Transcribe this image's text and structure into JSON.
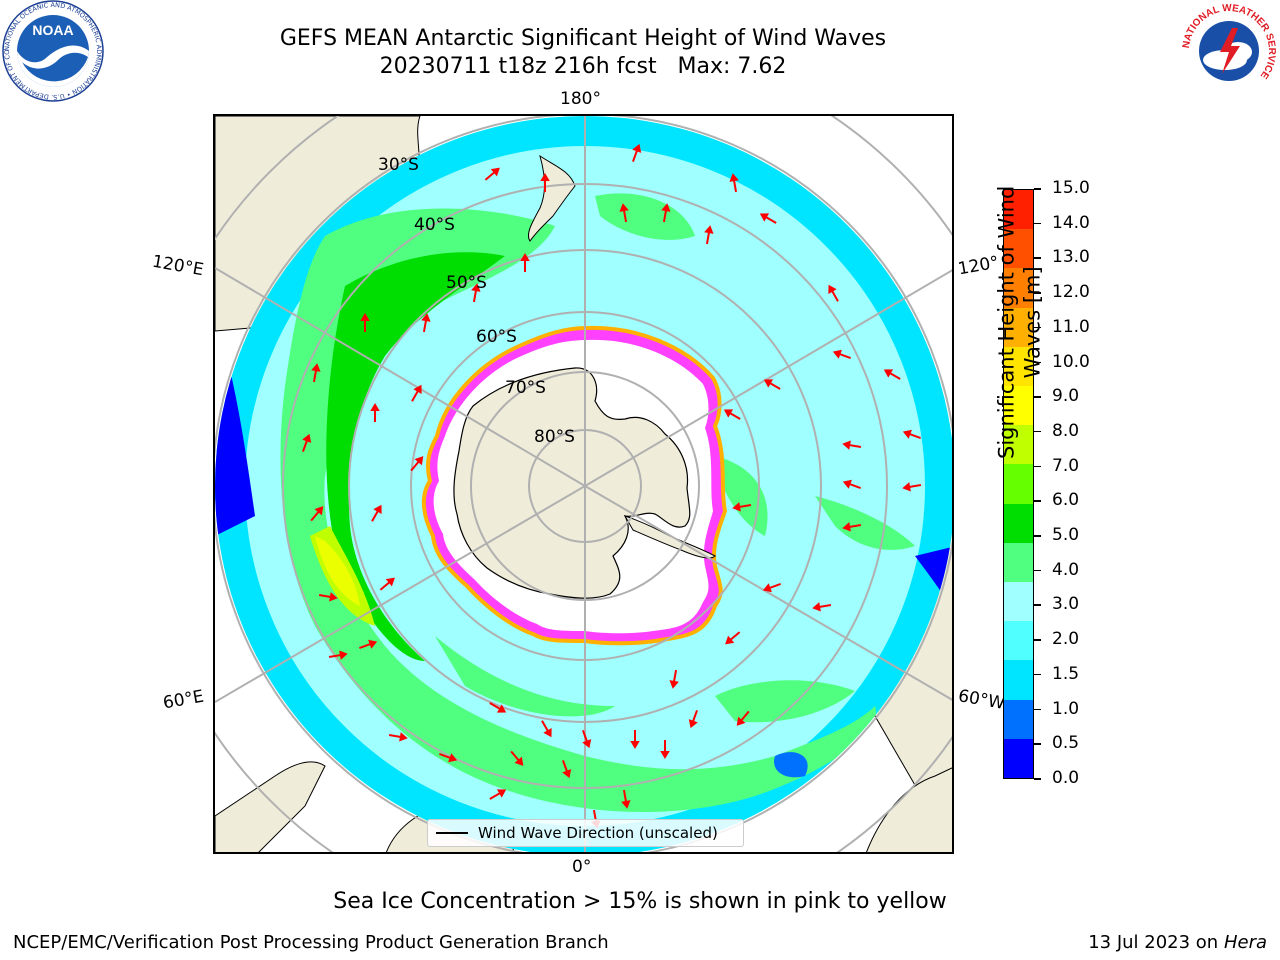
{
  "header": {
    "title_line1": "GEFS MEAN Antarctic Significant Height of Wind Waves",
    "title_line2": "20230711 t18z 216h fcst   Max: 7.62"
  },
  "logos": {
    "left": {
      "text": "NOAA",
      "ring_text": "NATIONAL OCEANIC AND ATMOSPHERIC ADMINISTRATION • U.S. DEPARTMENT OF COMMERCE"
    },
    "right": {
      "ring_text": "NATIONAL WEATHER SERVICE"
    }
  },
  "map": {
    "projection": "south-polar-stereographic",
    "colors": {
      "land": "#efecda",
      "ice_interior": "#ffffff",
      "grid": "#b0b0b0",
      "arrow": "#ff0000",
      "ice_edge": "#ff40ff"
    },
    "lon_labels": {
      "top": "180°",
      "bottom": "0°",
      "left_upper": "120°E",
      "left_lower": "60°E",
      "right_upper": "120°",
      "right_lower": "60°W"
    },
    "lat_labels": [
      "30°S",
      "40°S",
      "50°S",
      "60°S",
      "70°S",
      "80°S"
    ],
    "legend_label": "Wind Wave Direction (unscaled)"
  },
  "colorbar": {
    "title": "Significant Height of Wind Waves [m]",
    "title_line1": "Significant Height of Wind",
    "title_line2": "Waves [m]",
    "ticks": [
      "0.0",
      "0.5",
      "1.0",
      "1.5",
      "2.0",
      "3.0",
      "4.0",
      "5.0",
      "6.0",
      "7.0",
      "8.0",
      "9.0",
      "10.0",
      "11.0",
      "12.0",
      "13.0",
      "14.0",
      "15.0"
    ],
    "colors": [
      "#0000ff",
      "#0070ff",
      "#00e5ff",
      "#50ffff",
      "#a0ffff",
      "#50ff80",
      "#00dd00",
      "#66ff00",
      "#c0ff00",
      "#ffff00",
      "#ffe400",
      "#ffb000",
      "#ff8000",
      "#ff5000",
      "#ff2000"
    ]
  },
  "note": "Sea Ice Concentration > 15% is shown in pink to yellow",
  "footer": {
    "left": "NCEP/EMC/Verification Post Processing Product Generation Branch",
    "right_date": "13 Jul 2023 on ",
    "right_system": "Hera"
  }
}
